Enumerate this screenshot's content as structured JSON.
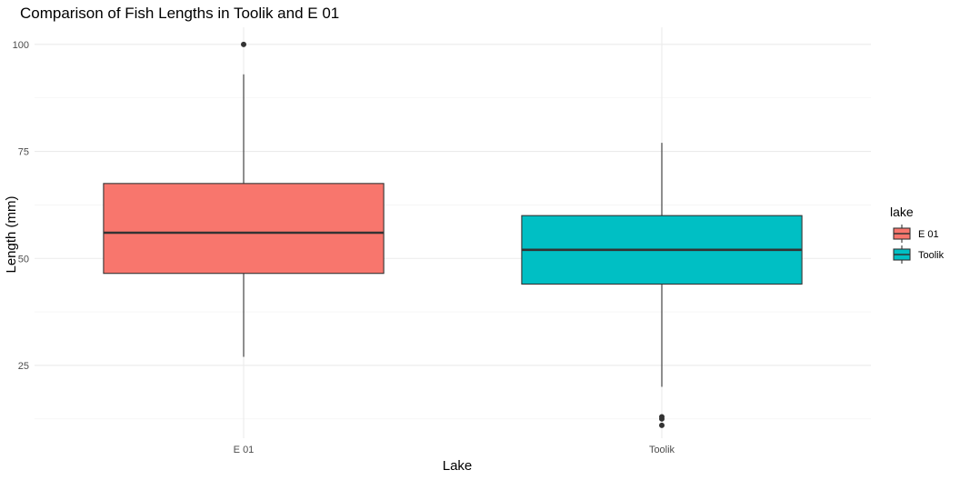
{
  "chart_data": {
    "type": "boxplot",
    "title": "Comparison of Fish Lengths in Toolik and E 01",
    "xlabel": "Lake",
    "ylabel": "Length (mm)",
    "categories": [
      "E 01",
      "Toolik"
    ],
    "y_ticks": [
      25,
      50,
      75,
      100
    ],
    "ylim": [
      8,
      104
    ],
    "grid": true,
    "legend": {
      "title": "lake",
      "position": "right",
      "entries": [
        "E 01",
        "Toolik"
      ]
    },
    "colors": {
      "E 01": "#F8766D",
      "Toolik": "#00BFC4",
      "box_outline": "#333333",
      "grid": "#ebebeb"
    },
    "series": [
      {
        "name": "E 01",
        "whisker_low": 27,
        "q1": 46.5,
        "median": 56,
        "q3": 67.5,
        "whisker_high": 93,
        "outliers": [
          100
        ]
      },
      {
        "name": "Toolik",
        "whisker_low": 20,
        "q1": 44,
        "median": 52,
        "q3": 60,
        "whisker_high": 77,
        "outliers": [
          13,
          12.5,
          11
        ]
      }
    ]
  }
}
